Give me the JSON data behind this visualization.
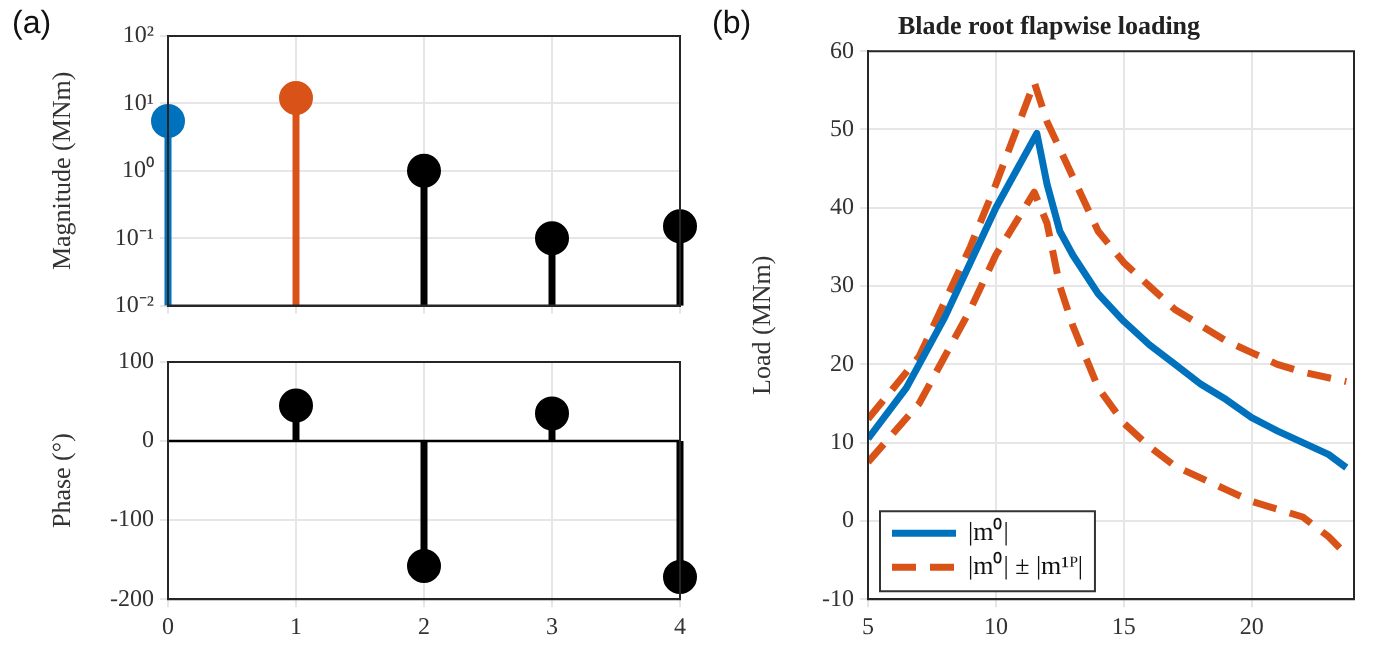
{
  "chart_data": [
    {
      "type": "lollipop",
      "annotations": [
        "(a)"
      ],
      "ylabel": "Magnitude (MNm)",
      "x": [
        0,
        1,
        2,
        3,
        4
      ],
      "values": [
        5.5,
        12,
        1.0,
        0.1,
        0.15
      ],
      "colors": [
        "#0072bd",
        "#d95319",
        "#000000",
        "#000000",
        "#000000"
      ],
      "log": "y",
      "xlim": [
        0,
        4
      ],
      "xticks": [
        0,
        1,
        2,
        3,
        4
      ],
      "ylim": [
        0.01,
        100
      ],
      "yticks": [
        {
          "value": 0.01,
          "label": "10⁻²"
        },
        {
          "value": 0.1,
          "label": "10⁻¹"
        },
        {
          "value": 1,
          "label": "10⁰"
        },
        {
          "value": 10,
          "label": "10¹"
        },
        {
          "value": 100,
          "label": "10²"
        }
      ],
      "tick_labels": "y",
      "grid": true,
      "marker": "circle"
    },
    {
      "type": "lollipop",
      "ylabel": "Phase (°)",
      "x": [
        1,
        2,
        3,
        4
      ],
      "values": [
        45,
        -158,
        35,
        -172
      ],
      "color": "#000000",
      "xlim": [
        0,
        4
      ],
      "xticks": [
        0,
        1,
        2,
        3,
        4
      ],
      "ylim": [
        -200,
        100
      ],
      "yticks": [
        -200,
        -100,
        0,
        100
      ],
      "grid": true,
      "marker": "circle"
    },
    {
      "type": "line",
      "title": "Blade root flapwise loading",
      "annotations": [
        "(b)"
      ],
      "ylabel": "Load (MNm)",
      "xlim": [
        5,
        24
      ],
      "xticks": [
        5,
        10,
        15,
        20
      ],
      "ylim": [
        -10,
        60
      ],
      "yticks": [
        -10,
        0,
        10,
        20,
        30,
        40,
        50,
        60
      ],
      "grid": true,
      "legend": "bottom left",
      "series": [
        {
          "name": "|m⁰|",
          "color": "#0072bd",
          "line_style": "solid",
          "x": [
            5,
            6.5,
            8,
            10,
            11.6,
            12,
            12.5,
            13,
            14,
            15,
            16,
            17,
            18,
            19,
            20,
            21,
            22,
            23,
            23.7
          ],
          "values": [
            10.5,
            17,
            26,
            40,
            49.5,
            43,
            37,
            34,
            29,
            25.5,
            22.5,
            20,
            17.5,
            15.5,
            13.2,
            11.5,
            10,
            8.5,
            6.8
          ]
        },
        {
          "name": "|m⁰| ± |m¹ᴾ|",
          "color": "#d95319",
          "line_style": "dashed",
          "x": [
            5,
            7,
            9,
            10,
            11.5,
            12,
            13,
            14,
            15,
            16,
            17,
            18,
            19,
            20,
            21,
            22,
            23.7
          ],
          "values": [
            13,
            21,
            35,
            43,
            56,
            51,
            44,
            37,
            33,
            30,
            27,
            25,
            23,
            21.5,
            20,
            19,
            17.8
          ]
        },
        {
          "color": "#d95319",
          "line_style": "dashed",
          "x": [
            5,
            7,
            9,
            10,
            11.5,
            12,
            12.5,
            13,
            14,
            15,
            16,
            17,
            18,
            19,
            20,
            21,
            22,
            23,
            23.7
          ],
          "values": [
            7.5,
            15,
            27,
            34,
            42,
            38,
            30,
            25,
            17,
            12.5,
            9.5,
            7,
            5.5,
            4,
            2.5,
            1.5,
            0.5,
            -2,
            -4.3
          ]
        }
      ]
    }
  ]
}
